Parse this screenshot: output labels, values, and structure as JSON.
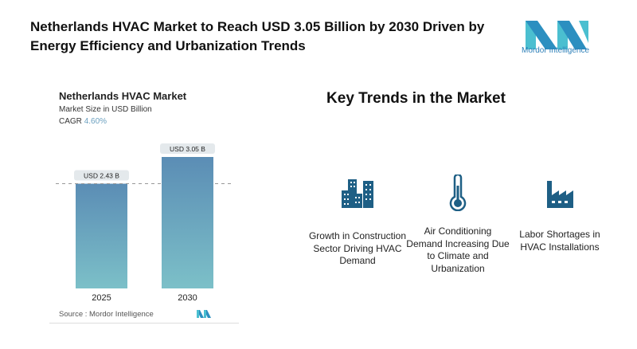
{
  "title": "Netherlands HVAC Market to Reach USD 3.05 Billion by 2030 Driven by Energy Efficiency and Urbanization Trends",
  "logo": {
    "text": "Mordor Intelligence"
  },
  "colors": {
    "brand": "#1f6f9a",
    "logo_light": "#4bbfd0",
    "bar_top": "#5b8db5",
    "bar_bottom": "#7cc0c8",
    "icon": "#1e5f85"
  },
  "chart_data": {
    "type": "bar",
    "title": "Netherlands HVAC Market",
    "subtitle": "Market Size in USD Billion",
    "cagr_label": "CAGR",
    "cagr_value": "4.60%",
    "categories": [
      "2025",
      "2030"
    ],
    "values": [
      2.43,
      3.05
    ],
    "data_labels": [
      "USD 2.43 B",
      "USD 3.05 B"
    ],
    "ylim": [
      0,
      3.05
    ],
    "grid": false,
    "source": "Source :  Mordor Intelligence"
  },
  "trends": {
    "heading": "Key Trends in the Market",
    "items": [
      {
        "icon": "buildings-icon",
        "text": "Growth in Construction Sector Driving HVAC Demand"
      },
      {
        "icon": "thermometer-icon",
        "text": "Air Conditioning Demand Increasing Due to Climate and Urbanization"
      },
      {
        "icon": "factory-icon",
        "text": "Labor Shortages in HVAC Installations"
      }
    ]
  }
}
